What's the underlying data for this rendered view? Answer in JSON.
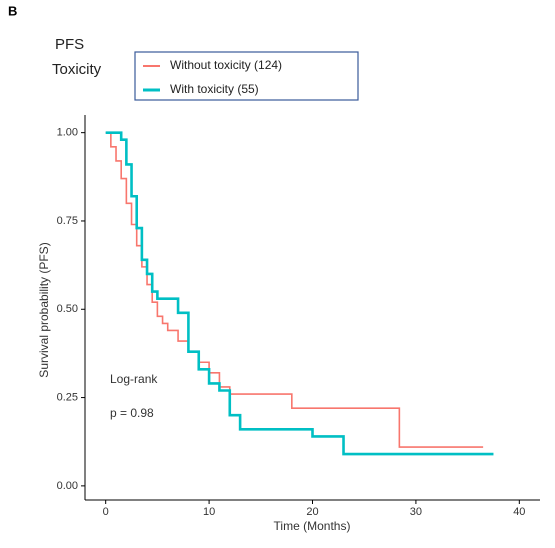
{
  "chart_data": {
    "type": "line",
    "step": true,
    "panel_label": "B",
    "legend_title": [
      "PFS",
      "Toxicity"
    ],
    "xlabel": "Time (Months)",
    "ylabel": "Survival probability (PFS)",
    "annotations": [
      "Log-rank",
      "p = 0.98"
    ],
    "xlim": [
      -2,
      42
    ],
    "ylim": [
      -0.04,
      1.05
    ],
    "xticks": [
      0,
      10,
      20,
      30,
      40
    ],
    "yticks": [
      {
        "value": 0,
        "label": "0.00"
      },
      {
        "value": 0.25,
        "label": "0.25"
      },
      {
        "value": 0.5,
        "label": "0.50"
      },
      {
        "value": 0.75,
        "label": "0.75"
      },
      {
        "value": 1,
        "label": "1.00"
      }
    ],
    "series": [
      {
        "name": "Without toxicity (124)",
        "color": "#f8766d",
        "x": [
          0,
          0.5,
          1,
          1.5,
          2,
          2.5,
          3,
          3.5,
          4,
          4.5,
          5,
          5.5,
          6,
          7,
          8,
          9,
          10,
          11,
          12,
          18,
          28.4,
          36.5
        ],
        "values": [
          1.0,
          0.96,
          0.92,
          0.87,
          0.8,
          0.74,
          0.68,
          0.62,
          0.57,
          0.52,
          0.48,
          0.46,
          0.44,
          0.41,
          0.38,
          0.35,
          0.32,
          0.28,
          0.26,
          0.22,
          0.11,
          0.11
        ]
      },
      {
        "name": "With toxicity (55)",
        "color": "#00bfc4",
        "x": [
          0,
          1.5,
          2,
          2.5,
          3,
          3.5,
          4,
          4.5,
          5,
          6,
          7,
          8,
          9,
          10,
          11,
          12,
          13,
          20,
          23,
          37.5
        ],
        "values": [
          1.0,
          0.98,
          0.91,
          0.82,
          0.73,
          0.64,
          0.6,
          0.55,
          0.53,
          0.53,
          0.49,
          0.38,
          0.33,
          0.29,
          0.27,
          0.2,
          0.16,
          0.14,
          0.09,
          0.09
        ]
      }
    ]
  }
}
